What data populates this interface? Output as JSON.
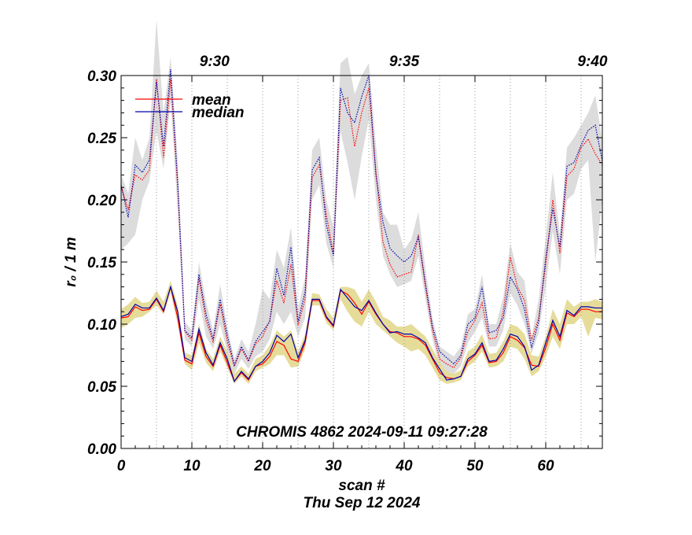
{
  "chart_data": {
    "type": "line",
    "title": "",
    "xlabel": "scan #",
    "date_label": "Thu Sep 12 2024",
    "ylabel": "r₀ / 1 m",
    "xlim": [
      0,
      68
    ],
    "ylim": [
      0.0,
      0.3
    ],
    "x_ticks": [
      "0",
      "10",
      "20",
      "30",
      "40",
      "50",
      "60"
    ],
    "y_ticks": [
      "0.00",
      "0.05",
      "0.10",
      "0.15",
      "0.20",
      "0.25",
      "0.30"
    ],
    "top_ticks": [
      {
        "label": "9:30",
        "x": 13.2
      },
      {
        "label": "9:35",
        "x": 40
      },
      {
        "label": "9:40",
        "x": 66.6
      }
    ],
    "time_gridlines_x": [
      5,
      10,
      15,
      20,
      25,
      30,
      35,
      40,
      45,
      50,
      55,
      60,
      65
    ],
    "annotation": "CHROMIS 4862 2024-09-11 09:27:28",
    "legend": [
      {
        "label": "mean",
        "color": "#ff0000"
      },
      {
        "label": "median",
        "color": "#0000aa"
      }
    ],
    "colors": {
      "mean": "#ff0000",
      "median": "#0000aa",
      "upper_band": "#dcdcdc",
      "lower_band": "#e6dc9a",
      "grid": "#999999"
    },
    "series": [
      {
        "name": "mean (lower)",
        "style": "solid",
        "color": "#ff0000",
        "values": [
          0.105,
          0.106,
          0.114,
          0.111,
          0.112,
          0.12,
          0.11,
          0.13,
          0.105,
          0.071,
          0.068,
          0.093,
          0.074,
          0.066,
          0.083,
          0.069,
          0.054,
          0.061,
          0.055,
          0.066,
          0.068,
          0.074,
          0.086,
          0.083,
          0.072,
          0.07,
          0.085,
          0.119,
          0.119,
          0.105,
          0.098,
          0.127,
          0.124,
          0.117,
          0.108,
          0.118,
          0.108,
          0.1,
          0.094,
          0.093,
          0.09,
          0.09,
          0.088,
          0.083,
          0.072,
          0.061,
          0.057,
          0.056,
          0.058,
          0.07,
          0.075,
          0.083,
          0.069,
          0.07,
          0.077,
          0.09,
          0.087,
          0.081,
          0.067,
          0.066,
          0.081,
          0.1,
          0.087,
          0.109,
          0.106,
          0.112,
          0.112,
          0.11,
          0.11
        ]
      },
      {
        "name": "median (lower)",
        "style": "solid",
        "color": "#0000aa",
        "values": [
          0.106,
          0.108,
          0.116,
          0.113,
          0.113,
          0.121,
          0.111,
          0.13,
          0.11,
          0.073,
          0.07,
          0.096,
          0.077,
          0.067,
          0.085,
          0.072,
          0.054,
          0.062,
          0.056,
          0.066,
          0.07,
          0.077,
          0.091,
          0.086,
          0.092,
          0.073,
          0.087,
          0.12,
          0.12,
          0.106,
          0.099,
          0.128,
          0.121,
          0.114,
          0.111,
          0.119,
          0.109,
          0.1,
          0.093,
          0.094,
          0.092,
          0.092,
          0.089,
          0.085,
          0.073,
          0.064,
          0.055,
          0.056,
          0.058,
          0.072,
          0.076,
          0.085,
          0.07,
          0.071,
          0.08,
          0.092,
          0.09,
          0.082,
          0.063,
          0.067,
          0.085,
          0.103,
          0.09,
          0.111,
          0.107,
          0.114,
          0.114,
          0.113,
          0.113
        ]
      },
      {
        "name": "mean (upper)",
        "style": "dotted",
        "color": "#ff0000",
        "values": [
          0.211,
          0.192,
          0.22,
          0.216,
          0.224,
          0.297,
          0.234,
          0.297,
          0.21,
          0.094,
          0.087,
          0.137,
          0.103,
          0.086,
          0.116,
          0.086,
          0.066,
          0.08,
          0.07,
          0.084,
          0.09,
          0.103,
          0.135,
          0.117,
          0.148,
          0.099,
          0.12,
          0.218,
          0.228,
          0.188,
          0.157,
          0.28,
          0.282,
          0.243,
          0.27,
          0.29,
          0.223,
          0.166,
          0.148,
          0.138,
          0.14,
          0.142,
          0.172,
          0.13,
          0.095,
          0.072,
          0.068,
          0.065,
          0.073,
          0.094,
          0.103,
          0.117,
          0.088,
          0.089,
          0.11,
          0.154,
          0.13,
          0.119,
          0.087,
          0.105,
          0.148,
          0.2,
          0.157,
          0.219,
          0.225,
          0.242,
          0.249,
          0.237,
          0.228
        ]
      },
      {
        "name": "median (upper)",
        "style": "dotted",
        "color": "#0000aa",
        "values": [
          0.212,
          0.186,
          0.228,
          0.222,
          0.232,
          0.295,
          0.243,
          0.305,
          0.214,
          0.095,
          0.089,
          0.14,
          0.108,
          0.088,
          0.12,
          0.091,
          0.067,
          0.082,
          0.071,
          0.086,
          0.094,
          0.102,
          0.145,
          0.123,
          0.162,
          0.102,
          0.126,
          0.224,
          0.234,
          0.18,
          0.155,
          0.29,
          0.27,
          0.262,
          0.283,
          0.3,
          0.22,
          0.182,
          0.161,
          0.155,
          0.15,
          0.155,
          0.17,
          0.133,
          0.098,
          0.078,
          0.073,
          0.068,
          0.075,
          0.1,
          0.105,
          0.13,
          0.093,
          0.095,
          0.105,
          0.138,
          0.128,
          0.112,
          0.081,
          0.102,
          0.153,
          0.193,
          0.162,
          0.227,
          0.23,
          0.244,
          0.256,
          0.26,
          0.231
        ]
      }
    ],
    "bands": [
      {
        "name": "upper band",
        "color": "#dcdcdc",
        "low": [
          0.16,
          0.165,
          0.172,
          0.2,
          0.215,
          0.255,
          0.225,
          0.28,
          0.19,
          0.088,
          0.082,
          0.12,
          0.09,
          0.08,
          0.1,
          0.078,
          0.06,
          0.072,
          0.064,
          0.074,
          0.078,
          0.088,
          0.11,
          0.1,
          0.11,
          0.09,
          0.105,
          0.2,
          0.212,
          0.165,
          0.145,
          0.255,
          0.23,
          0.2,
          0.235,
          0.265,
          0.2,
          0.155,
          0.14,
          0.13,
          0.132,
          0.135,
          0.155,
          0.12,
          0.088,
          0.066,
          0.062,
          0.06,
          0.066,
          0.085,
          0.094,
          0.105,
          0.082,
          0.082,
          0.095,
          0.125,
          0.115,
          0.1,
          0.076,
          0.093,
          0.13,
          0.175,
          0.14,
          0.2,
          0.205,
          0.225,
          0.232,
          0.15,
          0.2
        ],
        "high": [
          0.22,
          0.205,
          0.25,
          0.232,
          0.25,
          0.345,
          0.27,
          0.315,
          0.232,
          0.102,
          0.095,
          0.15,
          0.118,
          0.095,
          0.132,
          0.098,
          0.072,
          0.088,
          0.078,
          0.1,
          0.128,
          0.12,
          0.16,
          0.145,
          0.178,
          0.112,
          0.138,
          0.24,
          0.25,
          0.2,
          0.178,
          0.31,
          0.315,
          0.285,
          0.3,
          0.31,
          0.245,
          0.19,
          0.18,
          0.18,
          0.16,
          0.168,
          0.19,
          0.145,
          0.105,
          0.082,
          0.078,
          0.074,
          0.082,
          0.108,
          0.112,
          0.14,
          0.1,
          0.1,
          0.122,
          0.165,
          0.142,
          0.135,
          0.09,
          0.12,
          0.17,
          0.222,
          0.172,
          0.242,
          0.25,
          0.26,
          0.27,
          0.284,
          0.248
        ]
      },
      {
        "name": "lower band",
        "color": "#e6dc9a",
        "low": [
          0.097,
          0.1,
          0.105,
          0.106,
          0.11,
          0.115,
          0.108,
          0.125,
          0.1,
          0.068,
          0.063,
          0.085,
          0.069,
          0.062,
          0.078,
          0.065,
          0.052,
          0.058,
          0.052,
          0.062,
          0.065,
          0.068,
          0.075,
          0.075,
          0.065,
          0.066,
          0.08,
          0.115,
          0.115,
          0.101,
          0.095,
          0.12,
          0.11,
          0.102,
          0.098,
          0.11,
          0.1,
          0.095,
          0.09,
          0.085,
          0.082,
          0.078,
          0.08,
          0.075,
          0.065,
          0.055,
          0.052,
          0.053,
          0.055,
          0.066,
          0.07,
          0.078,
          0.065,
          0.066,
          0.07,
          0.082,
          0.08,
          0.072,
          0.058,
          0.062,
          0.074,
          0.09,
          0.08,
          0.1,
          0.1,
          0.106,
          0.09,
          0.105,
          0.104
        ],
        "high": [
          0.112,
          0.116,
          0.122,
          0.117,
          0.118,
          0.127,
          0.118,
          0.135,
          0.115,
          0.077,
          0.075,
          0.1,
          0.08,
          0.072,
          0.09,
          0.078,
          0.06,
          0.066,
          0.06,
          0.072,
          0.075,
          0.083,
          0.095,
          0.09,
          0.095,
          0.078,
          0.092,
          0.125,
          0.124,
          0.112,
          0.105,
          0.13,
          0.13,
          0.128,
          0.118,
          0.128,
          0.118,
          0.106,
          0.103,
          0.098,
          0.098,
          0.1,
          0.095,
          0.09,
          0.08,
          0.07,
          0.062,
          0.06,
          0.063,
          0.078,
          0.082,
          0.092,
          0.076,
          0.077,
          0.086,
          0.1,
          0.098,
          0.092,
          0.075,
          0.074,
          0.09,
          0.112,
          0.1,
          0.12,
          0.114,
          0.118,
          0.118,
          0.12,
          0.118
        ]
      }
    ]
  }
}
